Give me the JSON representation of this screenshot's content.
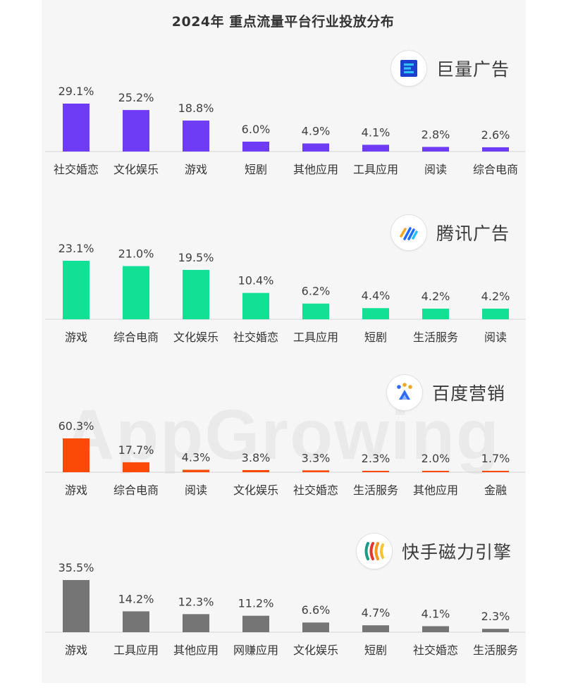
{
  "title": "2024年 重点流量平台行业投放分布",
  "watermark": "AppGrowing",
  "chart_data": [
    {
      "type": "bar",
      "platform": "巨量广告",
      "icon": "bytedance-ocean-engine-logo",
      "color": "#6e3cf5",
      "categories": [
        "社交婚恋",
        "文化娱乐",
        "游戏",
        "短剧",
        "其他应用",
        "工具应用",
        "阅读",
        "综合电商"
      ],
      "values": [
        29.1,
        25.2,
        18.8,
        6.0,
        4.9,
        4.1,
        2.8,
        2.6
      ],
      "value_labels": [
        "29.1%",
        "25.2%",
        "18.8%",
        "6.0%",
        "4.9%",
        "4.1%",
        "2.8%",
        "2.6%"
      ]
    },
    {
      "type": "bar",
      "platform": "腾讯广告",
      "icon": "tencent-ads-logo",
      "color": "#11e095",
      "categories": [
        "游戏",
        "综合电商",
        "文化娱乐",
        "社交婚恋",
        "工具应用",
        "短剧",
        "生活服务",
        "阅读"
      ],
      "values": [
        23.1,
        21.0,
        19.5,
        10.4,
        6.2,
        4.4,
        4.2,
        4.2
      ],
      "value_labels": [
        "23.1%",
        "21.0%",
        "19.5%",
        "10.4%",
        "6.2%",
        "4.4%",
        "4.2%",
        "4.2%"
      ]
    },
    {
      "type": "bar",
      "platform": "百度营销",
      "icon": "baidu-marketing-logo",
      "color": "#fb4a08",
      "categories": [
        "游戏",
        "综合电商",
        "阅读",
        "文化娱乐",
        "社交婚恋",
        "生活服务",
        "其他应用",
        "金融"
      ],
      "values": [
        60.3,
        17.7,
        4.3,
        3.8,
        3.3,
        2.3,
        2.0,
        1.7
      ],
      "value_labels": [
        "60.3%",
        "17.7%",
        "4.3%",
        "3.8%",
        "3.3%",
        "2.3%",
        "2.0%",
        "1.7%"
      ]
    },
    {
      "type": "bar",
      "platform": "快手磁力引擎",
      "icon": "kuaishou-magnetic-engine-logo",
      "color": "#757575",
      "categories": [
        "游戏",
        "工具应用",
        "其他应用",
        "网赚应用",
        "文化娱乐",
        "短剧",
        "社交婚恋",
        "生活服务"
      ],
      "values": [
        35.5,
        14.2,
        12.3,
        11.2,
        6.6,
        4.7,
        4.1,
        2.3
      ],
      "value_labels": [
        "35.5%",
        "14.2%",
        "12.3%",
        "11.2%",
        "6.6%",
        "4.7%",
        "4.1%",
        "2.3%"
      ]
    }
  ]
}
